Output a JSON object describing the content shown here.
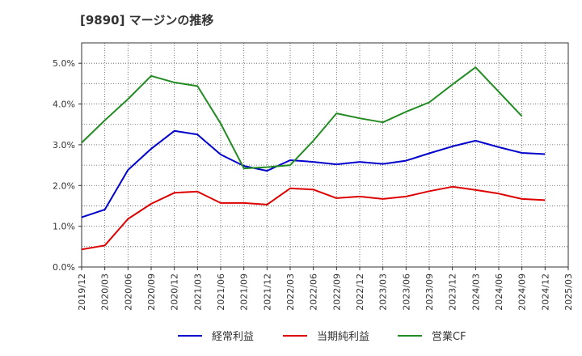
{
  "chart_data": {
    "type": "line",
    "title": "[9890]  マージンの推移",
    "xlabel": "",
    "ylabel": "",
    "x": [
      "2019/12",
      "2020/03",
      "2020/06",
      "2020/09",
      "2020/12",
      "2021/03",
      "2021/06",
      "2021/09",
      "2021/12",
      "2022/03",
      "2022/06",
      "2022/09",
      "2022/12",
      "2023/03",
      "2023/06",
      "2023/09",
      "2023/12",
      "2024/03",
      "2024/06",
      "2024/09",
      "2024/12",
      "2025/03"
    ],
    "y_ticks": [
      "0.0%",
      "1.0%",
      "2.0%",
      "3.0%",
      "4.0%",
      "5.0%"
    ],
    "ylim": [
      0,
      5.5
    ],
    "grid": true,
    "legend_position": "bottom",
    "series": [
      {
        "name": "経常利益",
        "color": "#0000cc",
        "values": [
          1.22,
          1.41,
          2.38,
          2.9,
          3.34,
          3.25,
          2.76,
          2.48,
          2.36,
          2.62,
          2.58,
          2.52,
          2.58,
          2.53,
          2.61,
          2.79,
          2.96,
          3.1,
          2.94,
          2.8,
          2.77,
          null
        ]
      },
      {
        "name": "当期純利益",
        "color": "#dd0000",
        "values": [
          0.43,
          0.53,
          1.18,
          1.55,
          1.82,
          1.85,
          1.57,
          1.57,
          1.53,
          1.93,
          1.9,
          1.69,
          1.73,
          1.67,
          1.73,
          1.86,
          1.97,
          1.89,
          1.8,
          1.67,
          1.64,
          null
        ]
      },
      {
        "name": "営業CF",
        "color": "#228B22",
        "values": [
          3.05,
          3.6,
          4.12,
          4.69,
          4.53,
          4.44,
          3.52,
          2.42,
          2.45,
          2.5,
          3.1,
          3.77,
          3.65,
          3.55,
          3.81,
          4.04,
          4.48,
          4.9,
          4.3,
          3.7,
          null,
          null
        ]
      }
    ]
  }
}
